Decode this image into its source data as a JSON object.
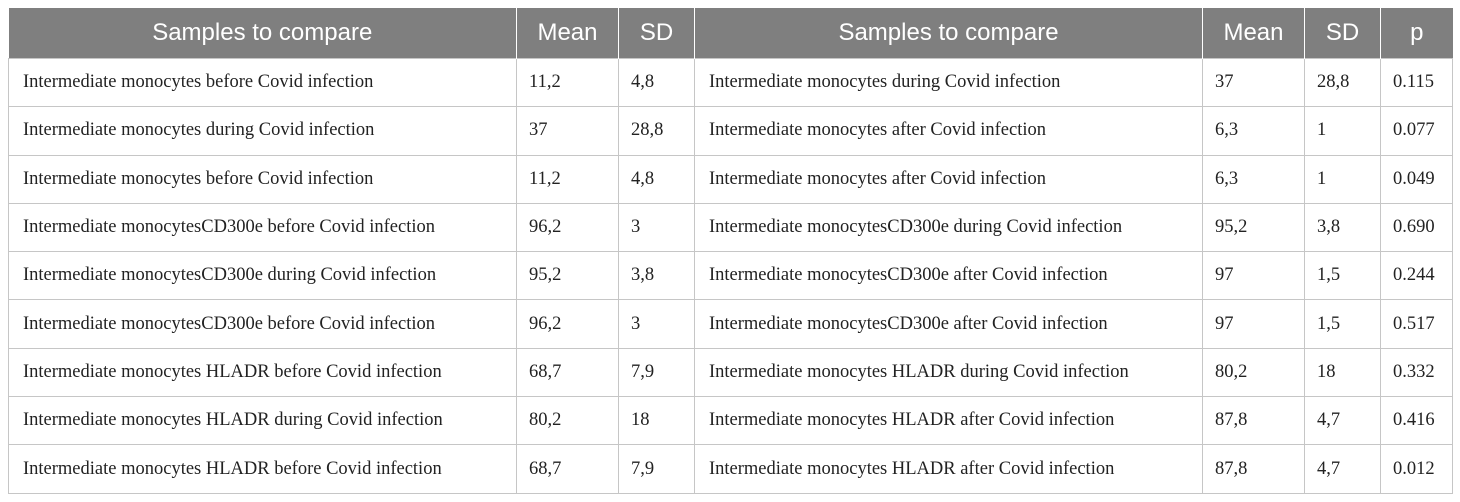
{
  "headers": [
    "Samples to compare",
    "Mean",
    "SD",
    "Samples to compare",
    "Mean",
    "SD",
    "p"
  ],
  "rows": [
    [
      "Intermediate monocytes before Covid infection",
      "11,2",
      "4,8",
      "Intermediate monocytes during Covid infection",
      "37",
      "28,8",
      "0.115"
    ],
    [
      "Intermediate monocytes during Covid infection",
      "37",
      "28,8",
      "Intermediate monocytes after Covid infection",
      "6,3",
      "1",
      "0.077"
    ],
    [
      "Intermediate monocytes before Covid infection",
      "11,2",
      "4,8",
      "Intermediate monocytes after Covid infection",
      "6,3",
      "1",
      "0.049"
    ],
    [
      "Intermediate monocytesCD300e before Covid infection",
      "96,2",
      "3",
      "Intermediate monocytesCD300e during Covid infection",
      "95,2",
      "3,8",
      "0.690"
    ],
    [
      "Intermediate monocytesCD300e during Covid infection",
      "95,2",
      "3,8",
      "Intermediate monocytesCD300e after Covid infection",
      "97",
      "1,5",
      "0.244"
    ],
    [
      "Intermediate monocytesCD300e before Covid infection",
      "96,2",
      "3",
      "Intermediate monocytesCD300e after Covid infection",
      "97",
      "1,5",
      "0.517"
    ],
    [
      "Intermediate monocytes HLADR before Covid infection",
      "68,7",
      "7,9",
      "Intermediate monocytes HLADR during Covid infection",
      "80,2",
      "18",
      "0.332"
    ],
    [
      "Intermediate monocytes HLADR during Covid infection",
      "80,2",
      "18",
      "Intermediate monocytes HLADR after Covid infection",
      "87,8",
      "4,7",
      "0.416"
    ],
    [
      "Intermediate monocytes HLADR before Covid infection",
      "68,7",
      "7,9",
      "Intermediate monocytes HLADR after Covid infection",
      "87,8",
      "4,7",
      "0.012"
    ]
  ]
}
